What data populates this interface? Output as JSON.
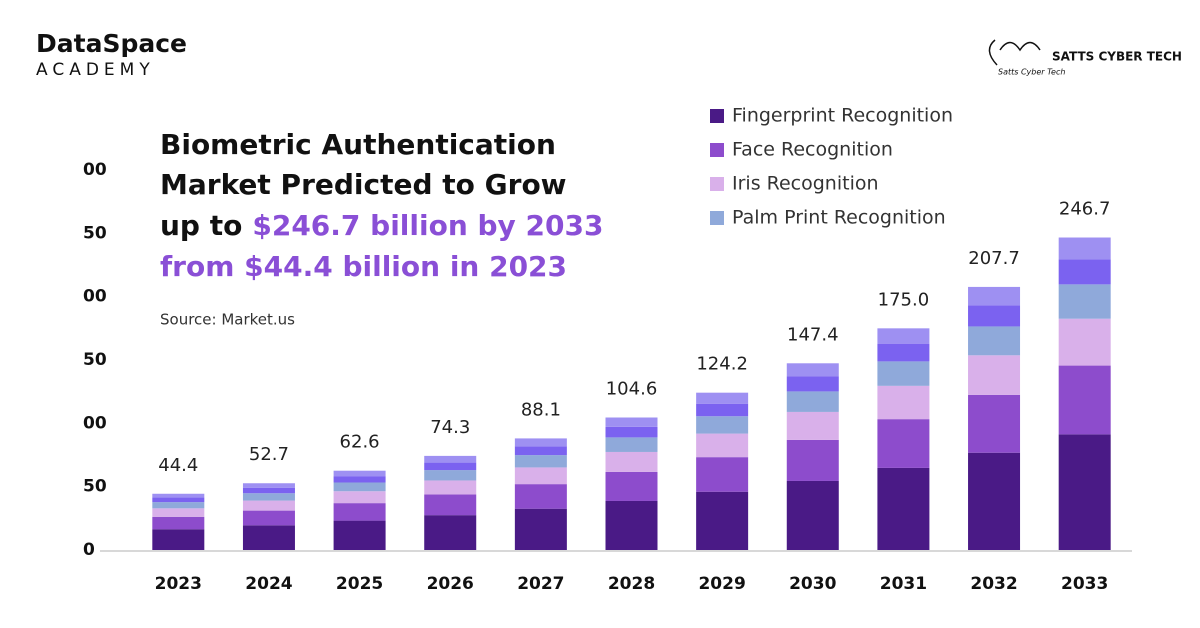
{
  "logos": {
    "left_top": "DataSpace",
    "left_bottom": "ACADEMY",
    "right": "SATTS CYBER TECH",
    "signature": "Satts Cyber Tech"
  },
  "chart_data": {
    "type": "stacked_bar",
    "title": [
      "Biometric Authentication",
      "Market Predicted to Grow",
      "up to",
      "$246.7 billion by 2033",
      "from $44.4 billion in 2023"
    ],
    "source": "Source: Market.us",
    "categories": [
      "2023",
      "2024",
      "2025",
      "2026",
      "2027",
      "2028",
      "2029",
      "2030",
      "2031",
      "2032",
      "2033"
    ],
    "series": [
      {
        "name": "Fingerprint Recognition",
        "color": "#4a1a86",
        "values": [
          16.4,
          19.5,
          23.2,
          27.5,
          32.6,
          38.7,
          46.0,
          54.5,
          64.8,
          76.8,
          91.3
        ]
      },
      {
        "name": "Face Recognition",
        "color": "#8d4ccc",
        "values": [
          9.8,
          11.6,
          13.8,
          16.3,
          19.4,
          23.0,
          27.3,
          32.4,
          38.5,
          45.7,
          54.3
        ]
      },
      {
        "name": "Iris Recognition",
        "color": "#d9b0ea",
        "values": [
          6.7,
          7.9,
          9.4,
          11.1,
          13.2,
          15.7,
          18.6,
          22.1,
          26.3,
          31.2,
          37.0
        ]
      },
      {
        "name": "Palm Print Recognition",
        "color": "#8fa9da",
        "values": [
          4.9,
          5.8,
          6.9,
          8.2,
          9.7,
          11.5,
          13.7,
          16.2,
          19.3,
          22.8,
          27.1
        ]
      },
      {
        "name": null,
        "color": "#7b62f0",
        "values": [
          3.6,
          4.2,
          5.0,
          5.9,
          7.0,
          8.4,
          9.9,
          11.8,
          14.0,
          16.6,
          19.7
        ]
      },
      {
        "name": null,
        "color": "#9e90f2",
        "values": [
          3.0,
          3.7,
          4.3,
          5.3,
          6.2,
          7.3,
          8.7,
          10.4,
          12.1,
          14.6,
          17.3
        ]
      }
    ],
    "value_labels": [
      "44.4",
      "52.7",
      "62.6",
      "74.3",
      "88.1",
      "104.6",
      "124.2",
      "147.4",
      "175.0",
      "207.7",
      "246.7"
    ],
    "ylim": [
      0,
      300
    ],
    "yticks": [
      0,
      {
        "value": 50,
        "label": "50"
      },
      {
        "value": 100,
        "label": "00"
      },
      {
        "value": 150,
        "label": "50"
      },
      {
        "value": 200,
        "label": "00"
      },
      {
        "value": 250,
        "label": "50"
      },
      {
        "value": 300,
        "label": "00"
      }
    ],
    "grid": false
  }
}
